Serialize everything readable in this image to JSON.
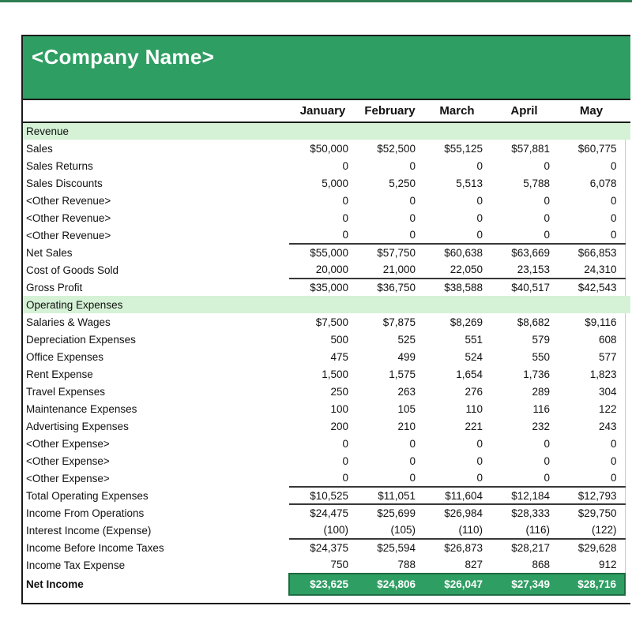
{
  "company": {
    "name": "<Company Name>"
  },
  "colors": {
    "brand_green": "#2f9e63",
    "section_row_green": "#d5f2d6",
    "net_income_bar_green": "#2f9e63",
    "top_accent_bar": "#2c7d4f",
    "sheet_border": "#1b1b1b"
  },
  "columns": [
    "January",
    "February",
    "March",
    "April",
    "May"
  ],
  "rows": [
    {
      "label": "Revenue",
      "type": "section"
    },
    {
      "label": "Sales",
      "values": [
        "$50,000",
        "$52,500",
        "$55,125",
        "$57,881",
        "$60,775"
      ]
    },
    {
      "label": "Sales Returns",
      "values": [
        "0",
        "0",
        "0",
        "0",
        "0"
      ]
    },
    {
      "label": "Sales Discounts",
      "values": [
        "5,000",
        "5,250",
        "5,513",
        "5,788",
        "6,078"
      ]
    },
    {
      "label": "<Other Revenue>",
      "values": [
        "0",
        "0",
        "0",
        "0",
        "0"
      ]
    },
    {
      "label": "<Other Revenue>",
      "values": [
        "0",
        "0",
        "0",
        "0",
        "0"
      ]
    },
    {
      "label": "<Other Revenue>",
      "values": [
        "0",
        "0",
        "0",
        "0",
        "0"
      ]
    },
    {
      "label": "Net Sales",
      "values": [
        "$55,000",
        "$57,750",
        "$60,638",
        "$63,669",
        "$66,853"
      ],
      "line_above": true
    },
    {
      "label": "Cost of Goods Sold",
      "values": [
        "20,000",
        "21,000",
        "22,050",
        "23,153",
        "24,310"
      ]
    },
    {
      "label": "Gross Profit",
      "values": [
        "$35,000",
        "$36,750",
        "$38,588",
        "$40,517",
        "$42,543"
      ],
      "line_above": true
    },
    {
      "label": "Operating Expenses",
      "type": "section"
    },
    {
      "label": "Salaries & Wages",
      "values": [
        "$7,500",
        "$7,875",
        "$8,269",
        "$8,682",
        "$9,116"
      ]
    },
    {
      "label": "Depreciation Expenses",
      "values": [
        "500",
        "525",
        "551",
        "579",
        "608"
      ]
    },
    {
      "label": "Office Expenses",
      "values": [
        "475",
        "499",
        "524",
        "550",
        "577"
      ]
    },
    {
      "label": "Rent Expense",
      "values": [
        "1,500",
        "1,575",
        "1,654",
        "1,736",
        "1,823"
      ]
    },
    {
      "label": "Travel Expenses",
      "values": [
        "250",
        "263",
        "276",
        "289",
        "304"
      ]
    },
    {
      "label": "Maintenance Expenses",
      "values": [
        "100",
        "105",
        "110",
        "116",
        "122"
      ]
    },
    {
      "label": "Advertising Expenses",
      "values": [
        "200",
        "210",
        "221",
        "232",
        "243"
      ]
    },
    {
      "label": "<Other Expense>",
      "values": [
        "0",
        "0",
        "0",
        "0",
        "0"
      ]
    },
    {
      "label": "<Other Expense>",
      "values": [
        "0",
        "0",
        "0",
        "0",
        "0"
      ]
    },
    {
      "label": "<Other Expense>",
      "values": [
        "0",
        "0",
        "0",
        "0",
        "0"
      ]
    },
    {
      "label": "Total Operating Expenses",
      "values": [
        "$10,525",
        "$11,051",
        "$11,604",
        "$12,184",
        "$12,793"
      ],
      "line_above": true,
      "line_below": true
    },
    {
      "label": "Income From Operations",
      "values": [
        "$24,475",
        "$25,699",
        "$26,984",
        "$28,333",
        "$29,750"
      ]
    },
    {
      "label": "Interest Income (Expense)",
      "values": [
        "(100)",
        "(105)",
        "(110)",
        "(116)",
        "(122)"
      ]
    },
    {
      "label": "Income Before Income Taxes",
      "values": [
        "$24,375",
        "$25,594",
        "$26,873",
        "$28,217",
        "$29,628"
      ],
      "line_above": true
    },
    {
      "label": "Income Tax Expense",
      "values": [
        "750",
        "788",
        "827",
        "868",
        "912"
      ]
    },
    {
      "label": "Net Income",
      "type": "net",
      "values": [
        "$23,625",
        "$24,806",
        "$26,047",
        "$27,349",
        "$28,716"
      ]
    }
  ]
}
